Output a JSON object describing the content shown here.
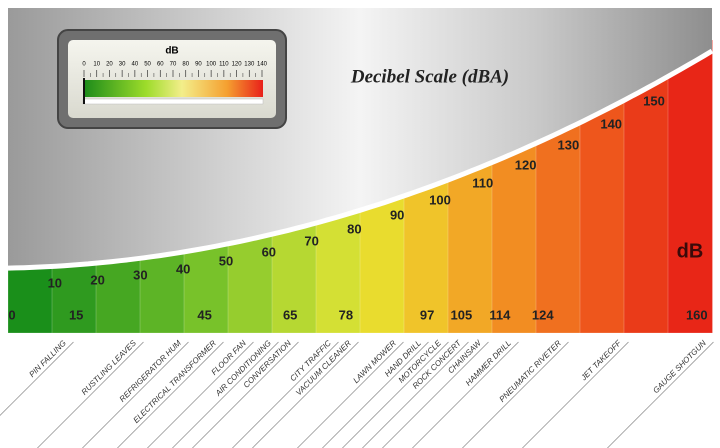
{
  "title": "Decibel Scale (dBA)",
  "unit": "dB",
  "meter": {
    "unit": "dB",
    "ticks": [
      0,
      10,
      20,
      30,
      40,
      50,
      60,
      70,
      80,
      90,
      100,
      110,
      120,
      130,
      140
    ]
  },
  "scale": [
    10,
    20,
    30,
    40,
    50,
    60,
    70,
    80,
    90,
    100,
    110,
    120,
    130,
    140,
    150
  ],
  "levels": [
    0,
    15,
    45,
    65,
    78,
    97,
    105,
    114,
    124,
    160
  ],
  "sources": [
    "PIN FALLING",
    "RUSTLING LEAVES",
    "REFRIGERATOR HUM",
    "ELECTRICAL TRANSFORMER",
    "FLOOR FAN",
    "AIR CONDITIONING",
    "CONVERSATION",
    "CITY TRAFFIC",
    "VACUUM CLEANER",
    "LAWN MOWER",
    "HAND DRILL",
    "MOTORCYCLE",
    "ROCK CONCERT",
    "CHAINSAW",
    "HAMMER DRILL",
    "PNEUMATIC RIVETER",
    "JET TAKEOFF",
    "GAUGE SHOTGUN"
  ]
}
